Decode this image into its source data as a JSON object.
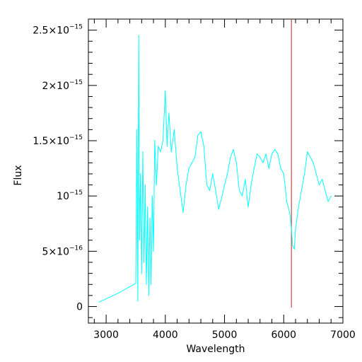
{
  "chart_data": {
    "type": "line",
    "xlabel": "Wavelength",
    "ylabel": "Flux",
    "xlim": [
      2700,
      7000
    ],
    "ylim": [
      -1.5e-16,
      2.6e-15
    ],
    "xticks": [
      {
        "value": 3000,
        "label": "3000"
      },
      {
        "value": 4000,
        "label": "4000"
      },
      {
        "value": 5000,
        "label": "5000"
      },
      {
        "value": 6000,
        "label": "6000"
      },
      {
        "value": 7000,
        "label": "7000"
      }
    ],
    "yticks": [
      {
        "value": 0,
        "base": "0",
        "exp": ""
      },
      {
        "value": 5e-16,
        "base": "5×10",
        "exp": "−16"
      },
      {
        "value": 1e-15,
        "base": "10",
        "exp": "−15"
      },
      {
        "value": 1.5e-15,
        "base": "1.5×10",
        "exp": "−15"
      },
      {
        "value": 2e-15,
        "base": "2×10",
        "exp": "−15"
      },
      {
        "value": 2.5e-15,
        "base": "2.5×10",
        "exp": "−15"
      }
    ],
    "series": [
      {
        "color": "#00ffff",
        "x": [
          2880,
          3200,
          3500,
          3520,
          3535,
          3550,
          3565,
          3580,
          3600,
          3620,
          3640,
          3660,
          3680,
          3700,
          3720,
          3740,
          3760,
          3780,
          3800,
          3820,
          3850,
          3880,
          3920,
          3960,
          4000,
          4030,
          4060,
          4100,
          4150,
          4200,
          4250,
          4300,
          4350,
          4400,
          4450,
          4500,
          4550,
          4600,
          4650,
          4700,
          4750,
          4800,
          4850,
          4900,
          4950,
          5000,
          5050,
          5100,
          5150,
          5200,
          5250,
          5300,
          5350,
          5400,
          5450,
          5500,
          5550,
          5600,
          5650,
          5700,
          5750,
          5800,
          5850,
          5900,
          5950,
          6000,
          6050,
          6100,
          6130,
          6150,
          6180,
          6200,
          6250,
          6300,
          6350,
          6400,
          6450,
          6500,
          6550,
          6600,
          6650,
          6700,
          6750,
          6800
        ],
        "y": [
          4e-17,
          1.2e-16,
          2.1e-16,
          1.6e-15,
          5e-17,
          2.45e-15,
          6e-16,
          1.2e-15,
          3e-16,
          1.4e-15,
          4e-16,
          1.1e-15,
          2e-16,
          9e-16,
          1e-16,
          8e-16,
          2e-16,
          1e-15,
          5e-16,
          1.5e-15,
          1.1e-15,
          1.45e-15,
          1.4e-15,
          1.5e-15,
          1.95e-15,
          1.45e-15,
          1.75e-15,
          1.4e-15,
          1.6e-15,
          1.25e-15,
          1.05e-15,
          8.5e-16,
          1.1e-15,
          1.25e-15,
          1.3e-15,
          1.35e-15,
          1.55e-15,
          1.58e-15,
          1.45e-15,
          1.1e-15,
          1.05e-15,
          1.2e-15,
          1.05e-15,
          8.8e-16,
          9.8e-16,
          1.1e-15,
          1.2e-15,
          1.35e-15,
          1.42e-15,
          1.3e-15,
          1.05e-15,
          1e-15,
          1.15e-15,
          9e-16,
          1.1e-15,
          1.25e-15,
          1.38e-15,
          1.35e-15,
          1.3e-15,
          1.38e-15,
          1.25e-15,
          1.38e-15,
          1.42e-15,
          1.38e-15,
          1.25e-15,
          1.2e-15,
          9.5e-16,
          8.5e-16,
          7e-16,
          5.5e-16,
          5.2e-16,
          7e-16,
          9e-16,
          1.05e-15,
          1.2e-15,
          1.4e-15,
          1.35e-15,
          1.3e-15,
          1.2e-15,
          1.1e-15,
          1.15e-15,
          1.05e-15,
          9.5e-16,
          1e-15
        ]
      }
    ],
    "vline": {
      "x": 6130,
      "color": "#cc2222"
    },
    "grid": false,
    "legend": "none"
  }
}
